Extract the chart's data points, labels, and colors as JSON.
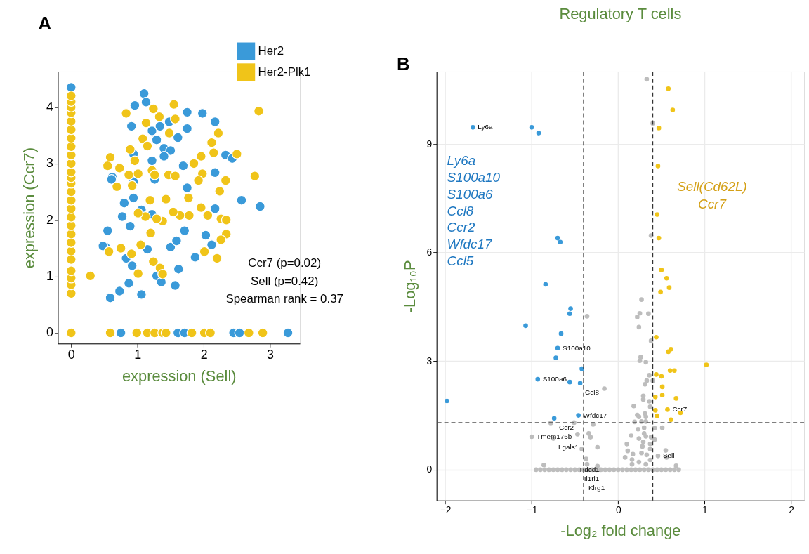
{
  "chart_data": [
    {
      "type": "scatter",
      "xlabel": "expression (Sell)",
      "ylabel": "expression (Ccr7)",
      "annotations": [
        "A",
        "Ccr7 (p=0.02)",
        "Sell (p=0.42)",
        "Spearman rank = 0.37"
      ],
      "xlim": [
        -0.2,
        3.45
      ],
      "ylim": [
        -0.19,
        4.63
      ],
      "xticks": [
        0,
        1,
        2,
        3
      ],
      "yticks": [
        0,
        1,
        2,
        3,
        4
      ],
      "grid": false,
      "legend": "top right",
      "marker": "circle",
      "series": [
        {
          "name": "Her2",
          "color": "#3a9ad9",
          "x": [
            0,
            1.1,
            1.13,
            0.96,
            0.91,
            1.22,
            1.34,
            1.48,
            1.75,
            1.98,
            2.17,
            1.75,
            1.29,
            1.4,
            1.61,
            1.5,
            2.33,
            2.43,
            2.17,
            1.75,
            1.69,
            1.4,
            1.22,
            0.94,
            0.62,
            0.8,
            0.94,
            0.77,
            0.89,
            0.55,
            1.06,
            1.22,
            2.17,
            2.57,
            2.85,
            1.71,
            2.03,
            2.12,
            1.5,
            1.59,
            1.87,
            1.15,
            0.83,
            0.92,
            1.29,
            1.36,
            1.57,
            1.62,
            0.59,
            0.73,
            0.87,
            1.06,
            0.94,
            1.26,
            0.52,
            0.61,
            0.48,
            0.75,
            1.61,
            1.71,
            2.45,
            2.54,
            3.27
          ],
          "values": [
            4.35,
            4.24,
            4.09,
            4.03,
            3.66,
            3.58,
            3.66,
            3.74,
            3.91,
            3.89,
            3.74,
            3.62,
            3.42,
            3.27,
            3.46,
            3.23,
            3.15,
            3.09,
            2.84,
            2.57,
            2.96,
            3.13,
            3.05,
            3.17,
            2.76,
            2.3,
            2.39,
            2.06,
            1.89,
            1.81,
            2.18,
            2.1,
            2.2,
            2.35,
            2.24,
            1.81,
            1.73,
            1.56,
            1.52,
            1.63,
            1.34,
            1.48,
            1.32,
            1.19,
            1.01,
            0.9,
            0.84,
            1.13,
            0.62,
            0.74,
            0.88,
            0.68,
            2.68,
            2.72,
            1.52,
            2.72,
            1.54,
            0,
            0,
            0,
            0,
            0,
            0
          ]
        },
        {
          "name": "Her2-Plk1",
          "color": "#f0c419",
          "x": [
            0,
            0,
            0,
            0,
            0,
            0,
            0,
            0,
            0,
            0,
            0,
            0,
            0,
            0,
            0,
            0,
            0,
            0,
            0,
            0,
            0,
            0,
            0,
            0,
            0,
            0,
            0.83,
            1.24,
            1.55,
            1.33,
            1.57,
            1.13,
            1.48,
            2.22,
            2.12,
            1.08,
            1.15,
            0.89,
            0.96,
            0.59,
            0.55,
            0.73,
            0.87,
            1.01,
            1.22,
            1.26,
            1.47,
            1.57,
            1.85,
            1.96,
            2.15,
            2.5,
            2.77,
            1.98,
            1.92,
            2.33,
            2.24,
            1.43,
            1.77,
            1.19,
            1.96,
            2.06,
            2.26,
            2.34,
            1.78,
            1.64,
            1.38,
            1.29,
            1.12,
            1.01,
            1.2,
            1.54,
            2.34,
            2.26,
            2.01,
            2.2,
            1.05,
            0.91,
            0.75,
            0.57,
            1.24,
            1.34,
            1.01,
            1.38,
            2.83,
            0.29,
            0.69,
            0.92,
            0,
            0.59,
            0.99,
            1.15,
            1.26,
            1.38,
            1.43,
            1.82,
            2.01,
            2.1,
            2.68,
            2.89
          ],
          "values": [
            0.7,
            0.85,
            0.97,
            1.1,
            1.3,
            1.45,
            1.6,
            1.75,
            1.9,
            2.05,
            2.2,
            2.35,
            2.5,
            2.65,
            2.75,
            2.85,
            3.0,
            3.15,
            3.3,
            3.45,
            3.6,
            3.75,
            3.9,
            4.0,
            4.1,
            4.2,
            3.89,
            3.97,
            4.05,
            3.83,
            3.79,
            3.72,
            3.54,
            3.54,
            3.37,
            3.44,
            3.31,
            3.25,
            3.05,
            3.11,
            2.96,
            2.92,
            2.8,
            2.82,
            2.88,
            2.8,
            2.8,
            2.78,
            3.0,
            3.13,
            3.19,
            3.17,
            2.78,
            2.82,
            2.7,
            2.7,
            2.51,
            2.37,
            2.39,
            2.35,
            2.22,
            2.08,
            2.02,
            2.0,
            2.08,
            2.08,
            1.98,
            2.02,
            2.06,
            2.12,
            1.77,
            2.14,
            1.75,
            1.65,
            1.44,
            1.32,
            1.56,
            1.4,
            1.5,
            1.44,
            1.26,
            1.15,
            1.05,
            1.04,
            3.93,
            1.01,
            2.59,
            2.61,
            0,
            0,
            0,
            0,
            0,
            0,
            0,
            0,
            0,
            0,
            0,
            0
          ]
        }
      ]
    },
    {
      "type": "scatter",
      "title": "Regulatory T cells",
      "xlabel": "-Log₂ fold change",
      "ylabel": "-Log₁₀P",
      "annotations": [
        "B",
        "Ly6a",
        "S100a10",
        "S100a6",
        "Ccl8",
        "Ccr2",
        "Wfdc17",
        "Ccl5",
        "Sell(Cd62L)",
        "Ccr7",
        {
          "text": "Ly6a",
          "x": -1.68,
          "y": 9.46
        },
        {
          "text": "S100a10",
          "x": -0.7,
          "y": 3.36
        },
        {
          "text": "S100a6",
          "x": -0.93,
          "y": 2.5
        },
        {
          "text": "Ccl8",
          "x": -0.44,
          "y": 2.39
        },
        {
          "text": "Wfdc17",
          "x": -0.46,
          "y": 1.5
        },
        {
          "text": "Ccr2",
          "x": -0.74,
          "y": 1.42
        },
        {
          "text": "Ccr7",
          "x": 0.57,
          "y": 1.66
        },
        {
          "text": "Tmem176b",
          "x": -1.0,
          "y": 0.91
        },
        {
          "text": "Lgals1",
          "x": -0.75,
          "y": 0.86
        },
        {
          "text": "Sell",
          "x": 0.46,
          "y": 0.38
        },
        {
          "text": "Pdcd1",
          "x": -0.5,
          "y": 0
        },
        {
          "text": "Il1rl1",
          "x": -0.45,
          "y": 0
        },
        {
          "text": "Klrg1",
          "x": -0.4,
          "y": 0
        }
      ],
      "xlim": [
        -2.1,
        2.15
      ],
      "ylim": [
        -0.85,
        11.0
      ],
      "xticks": [
        -2,
        -1,
        0,
        1,
        2
      ],
      "yticks": [
        0,
        3,
        6,
        9
      ],
      "grid": true,
      "legend": false,
      "marker": "circle",
      "ref_lines": [
        {
          "axis": "x",
          "value": -0.4,
          "line_style": "dashed",
          "color": "#333333"
        },
        {
          "axis": "x",
          "value": 0.4,
          "line_style": "dashed",
          "color": "#333333"
        },
        {
          "axis": "y",
          "value": 1.3,
          "line_style": "dashed",
          "color": "#555555"
        }
      ],
      "series": [
        {
          "color": "#3a9ad9",
          "x": [
            -1.68,
            -1.0,
            -0.92,
            -0.7,
            -0.67,
            -0.84,
            -0.55,
            -0.56,
            -1.07,
            -0.66,
            -0.7,
            -0.72,
            -0.42,
            -0.93,
            -0.56,
            -0.44,
            -1.98,
            -0.46,
            -0.74
          ],
          "values": [
            9.46,
            9.46,
            9.3,
            6.4,
            6.29,
            5.12,
            4.45,
            4.31,
            3.98,
            3.76,
            3.36,
            3.09,
            2.79,
            2.5,
            2.42,
            2.39,
            1.9,
            1.5,
            1.42
          ]
        },
        {
          "color": "#f0c419",
          "x": [
            0.58,
            0.63,
            0.47,
            0.46,
            0.45,
            0.47,
            0.5,
            0.56,
            0.59,
            0.49,
            0.44,
            0.61,
            0.58,
            1.02,
            0.6,
            0.65,
            0.44,
            0.5,
            0.51,
            0.51,
            0.43,
            0.67,
            0.43,
            0.57,
            0.72,
            0.45,
            0.61
          ],
          "values": [
            10.53,
            9.94,
            9.44,
            8.39,
            7.05,
            6.4,
            5.52,
            5.29,
            5.03,
            4.91,
            3.66,
            3.33,
            3.26,
            2.9,
            2.74,
            2.74,
            2.63,
            2.58,
            2.29,
            2.06,
            2.01,
            1.97,
            1.64,
            1.66,
            1.57,
            1.49,
            1.38
          ]
        },
        {
          "color": "#bdbdbd",
          "x": [
            0.33,
            0.4,
            0.38,
            0.27,
            0.25,
            0.35,
            0.22,
            -0.36,
            0.24,
            0.38,
            0.26,
            0.25,
            0.32,
            0.36,
            0.33,
            0.4,
            0.31,
            -0.16,
            0.29,
            0.29,
            0.36,
            0.18,
            0.37,
            0.22,
            0.31,
            0.24,
            0.32,
            -0.78,
            -0.51,
            -0.29,
            0.19,
            0.27,
            0.32,
            0.23,
            0.3,
            0.42,
            0.51,
            0.15,
            0.3,
            0.24,
            0.32,
            0.38,
            0.42,
            -1.0,
            -0.75,
            -0.47,
            -0.34,
            -0.32,
            0.1,
            0.29,
            0.28,
            0.37,
            0.37,
            -0.24,
            -0.42,
            0.11,
            0.27,
            0.17,
            0.33,
            0.46,
            0.55,
            0.56,
            0.08,
            0.16,
            0.24,
            0.37,
            -0.37,
            -0.86,
            0.16,
            0.32,
            0.67,
            -0.36,
            -0.24,
            -0.95,
            -0.9,
            -0.85,
            -0.8,
            -0.75,
            -0.7,
            -0.65,
            -0.6,
            -0.55,
            -0.5,
            -0.45,
            -0.4,
            -0.35,
            -0.3,
            -0.25,
            -0.2,
            -0.15,
            -0.1,
            -0.05,
            0.0,
            0.05,
            0.1,
            0.15,
            0.2,
            0.25,
            0.3,
            0.35,
            0.4,
            0.45,
            0.5,
            0.55,
            0.6,
            0.65,
            0.7
          ],
          "values": [
            10.79,
            9.57,
            6.47,
            4.7,
            4.32,
            4.31,
            4.22,
            4.24,
            3.94,
            3.56,
            3.11,
            3.01,
            2.97,
            2.61,
            2.46,
            2.46,
            2.36,
            2.24,
            2.04,
            1.94,
            1.89,
            1.76,
            1.74,
            1.51,
            1.55,
            1.46,
            1.46,
            1.29,
            1.3,
            1.25,
            1.32,
            1.33,
            1.33,
            1.12,
            1.16,
            1.15,
            1.16,
            0.94,
            1.0,
            0.86,
            0.92,
            0.9,
            0.83,
            0.91,
            0.86,
            0.98,
            1.0,
            0.9,
            0.71,
            0.77,
            0.64,
            0.71,
            0.57,
            0.62,
            0.57,
            0.52,
            0.46,
            0.43,
            0.41,
            0.38,
            0.53,
            0.34,
            0.34,
            0.28,
            0.21,
            0.27,
            0.3,
            0.13,
            0.15,
            0.15,
            0.11,
            0.15,
            0.1,
            0,
            0,
            0,
            0,
            0,
            0,
            0,
            0,
            0,
            0,
            0,
            0,
            0,
            0,
            0,
            0,
            0,
            0,
            0,
            0,
            0,
            0,
            0,
            0,
            0,
            0,
            0,
            0,
            0,
            0,
            0,
            0,
            0,
            0
          ]
        }
      ]
    }
  ]
}
